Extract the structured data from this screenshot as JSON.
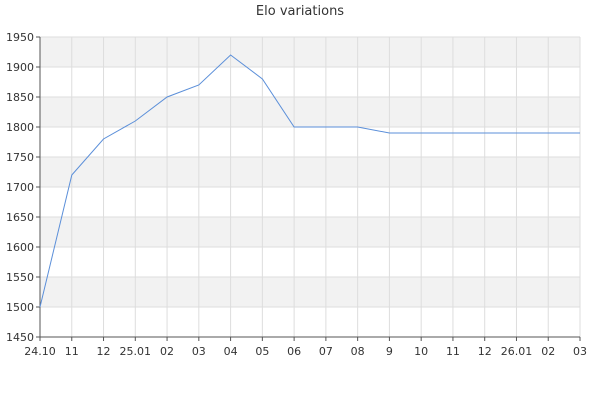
{
  "chart_data": {
    "type": "line",
    "title": "Elo variations",
    "xlabel": "",
    "ylabel": "",
    "ylim": [
      1450,
      1950
    ],
    "yticks": [
      1450,
      1500,
      1550,
      1600,
      1650,
      1700,
      1750,
      1800,
      1850,
      1900,
      1950
    ],
    "x_tick_labels": [
      "24.10",
      "11",
      "12",
      "25.01",
      "02",
      "03",
      "04",
      "05",
      "06",
      "07",
      "08",
      "9",
      "10",
      "11",
      "12",
      "26.01",
      "02",
      "03"
    ],
    "grid": true,
    "legend": "none",
    "series": [
      {
        "values": [
          1500,
          1720,
          1780,
          1810,
          1850,
          1870,
          1920,
          1880,
          1800,
          1800,
          1800,
          1790,
          1790,
          1790,
          1790,
          1790,
          1790,
          1790
        ]
      }
    ],
    "colors": {
      "line": "#5b8fd9",
      "band": "#f2f2f2",
      "grid": "#dddddd",
      "axis": "#555555"
    }
  }
}
